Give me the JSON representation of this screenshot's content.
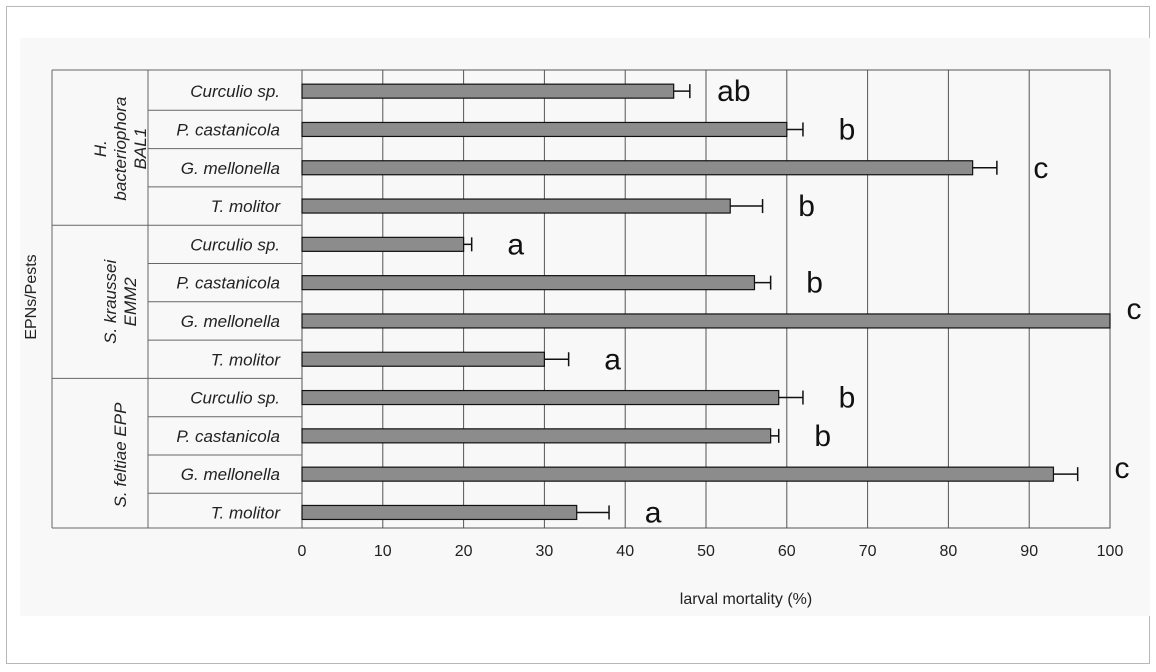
{
  "chart_data": {
    "type": "bar",
    "orientation": "horizontal",
    "title": "",
    "xlabel": "larval mortality (%)",
    "ylabel": "EPNs/Pests",
    "xlim": [
      0,
      100
    ],
    "xticks": [
      "0",
      "10",
      "20",
      "30",
      "40",
      "50",
      "60",
      "70",
      "80",
      "90",
      "100"
    ],
    "grid": "vertical",
    "bar_color": "#8c8c8c",
    "groups": [
      {
        "name_lines": [
          "H.",
          "bacteriophora",
          "BAL1"
        ],
        "bars": [
          {
            "category": "Curculio sp.",
            "value": 46,
            "error": 2,
            "label": "ab"
          },
          {
            "category": "P. castanicola",
            "value": 60,
            "error": 2,
            "label": "b"
          },
          {
            "category": "G. mellonella",
            "value": 83,
            "error": 3,
            "label": "c"
          },
          {
            "category": "T. molitor",
            "value": 53,
            "error": 4,
            "label": "b"
          }
        ]
      },
      {
        "name_lines": [
          "S. kraussei",
          "EMM2"
        ],
        "bars": [
          {
            "category": "Curculio sp.",
            "value": 20,
            "error": 1,
            "label": "a"
          },
          {
            "category": "P. castanicola",
            "value": 56,
            "error": 2,
            "label": "b"
          },
          {
            "category": "G. mellonella",
            "value": 100,
            "error": 0,
            "label": "c"
          },
          {
            "category": "T. molitor",
            "value": 30,
            "error": 3,
            "label": "a"
          }
        ]
      },
      {
        "name_lines": [
          "S. feltiae EPP"
        ],
        "bars": [
          {
            "category": "Curculio sp.",
            "value": 59,
            "error": 3,
            "label": "b"
          },
          {
            "category": "P. castanicola",
            "value": 58,
            "error": 1,
            "label": "b"
          },
          {
            "category": "G. mellonella",
            "value": 93,
            "error": 3,
            "label": "c"
          },
          {
            "category": "T. molitor",
            "value": 34,
            "error": 4,
            "label": "a"
          }
        ]
      }
    ]
  }
}
